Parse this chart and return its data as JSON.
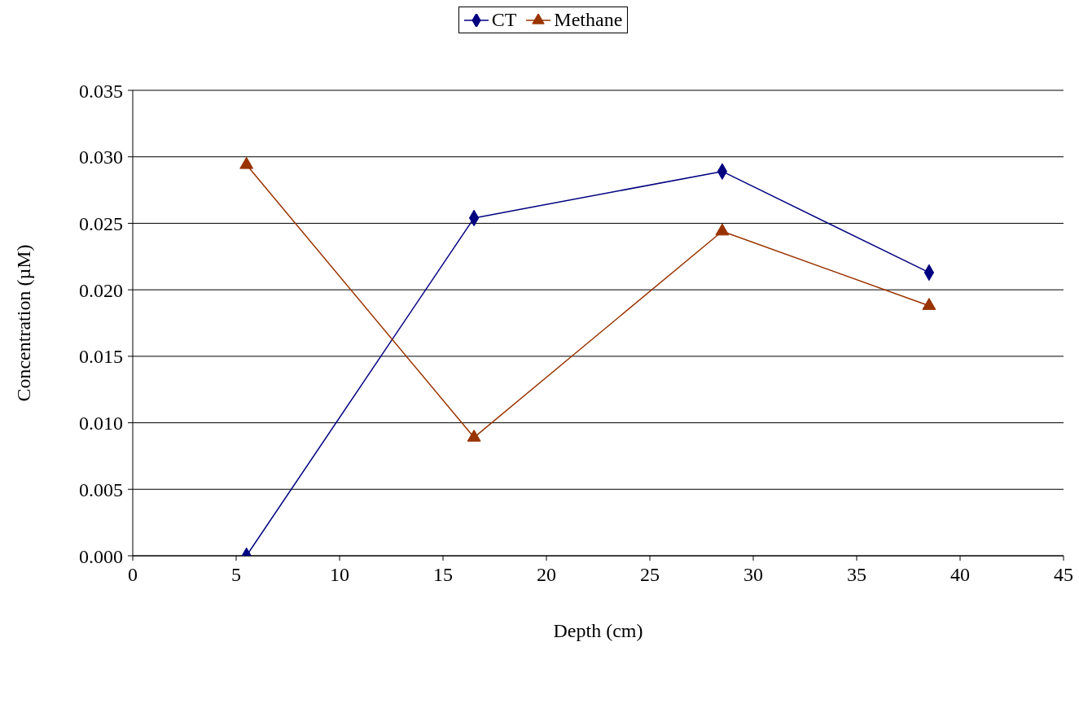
{
  "chart_data": {
    "type": "line",
    "xlabel": "Depth (cm)",
    "ylabel": "Concentration (µM)",
    "x": [
      5.5,
      16.5,
      28.5,
      38.5
    ],
    "series": [
      {
        "name": "CT",
        "color": "#000080",
        "marker": "diamond",
        "values": [
          0,
          0.0254,
          0.0289,
          0.0213
        ]
      },
      {
        "name": "Methane",
        "color": "#993300",
        "marker": "triangle",
        "values": [
          0.0294,
          0.0089,
          0.0244,
          0.0188
        ]
      }
    ],
    "xlim": [
      0,
      45
    ],
    "xticks": [
      0,
      5,
      10,
      15,
      20,
      25,
      30,
      35,
      40,
      45
    ],
    "ylim": [
      0,
      0.035
    ],
    "yticks": [
      {
        "value": 0,
        "label": "0.000"
      },
      {
        "value": 0.005,
        "label": "0.005"
      },
      {
        "value": 0.01,
        "label": "0.010"
      },
      {
        "value": 0.015,
        "label": "0.015"
      },
      {
        "value": 0.02,
        "label": "0.020"
      },
      {
        "value": 0.025,
        "label": "0.025"
      },
      {
        "value": 0.03,
        "label": "0.030"
      },
      {
        "value": 0.035,
        "label": "0.035"
      }
    ],
    "grid": "y",
    "legend": "top",
    "line_style": "solid"
  }
}
